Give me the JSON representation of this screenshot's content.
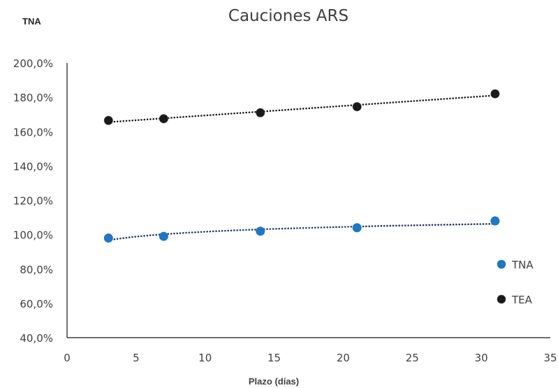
{
  "chart_data": {
    "type": "scatter",
    "title": "Cauciones ARS",
    "ylabel": "TNA",
    "xlabel": "Plazo (días)",
    "xlim": [
      0,
      35
    ],
    "ylim": [
      40,
      200
    ],
    "x_ticks": [
      0,
      5,
      10,
      15,
      20,
      25,
      30,
      35
    ],
    "y_ticks": [
      40,
      60,
      80,
      100,
      120,
      140,
      160,
      180,
      200
    ],
    "y_tick_labels": [
      "40,0%",
      "60,0%",
      "80,0%",
      "100,0%",
      "120,0%",
      "140,0%",
      "160,0%",
      "180,0%",
      "200,0%"
    ],
    "grid": false,
    "legend_position": "bottom-right",
    "series": [
      {
        "name": "TNA",
        "color": "#1f77c4",
        "trendline": "logarithmic",
        "trendline_color": "#1f3864",
        "points": [
          {
            "x": 3,
            "y": 98
          },
          {
            "x": 7,
            "y": 99
          },
          {
            "x": 14,
            "y": 102
          },
          {
            "x": 21,
            "y": 104
          },
          {
            "x": 31,
            "y": 108
          }
        ]
      },
      {
        "name": "TEA",
        "color": "#1a1a1a",
        "trendline": "linear",
        "trendline_color": "#1a1a1a",
        "points": [
          {
            "x": 3,
            "y": 166.5
          },
          {
            "x": 7,
            "y": 167.5
          },
          {
            "x": 14,
            "y": 171
          },
          {
            "x": 21,
            "y": 174.5
          },
          {
            "x": 31,
            "y": 182
          }
        ]
      }
    ]
  }
}
